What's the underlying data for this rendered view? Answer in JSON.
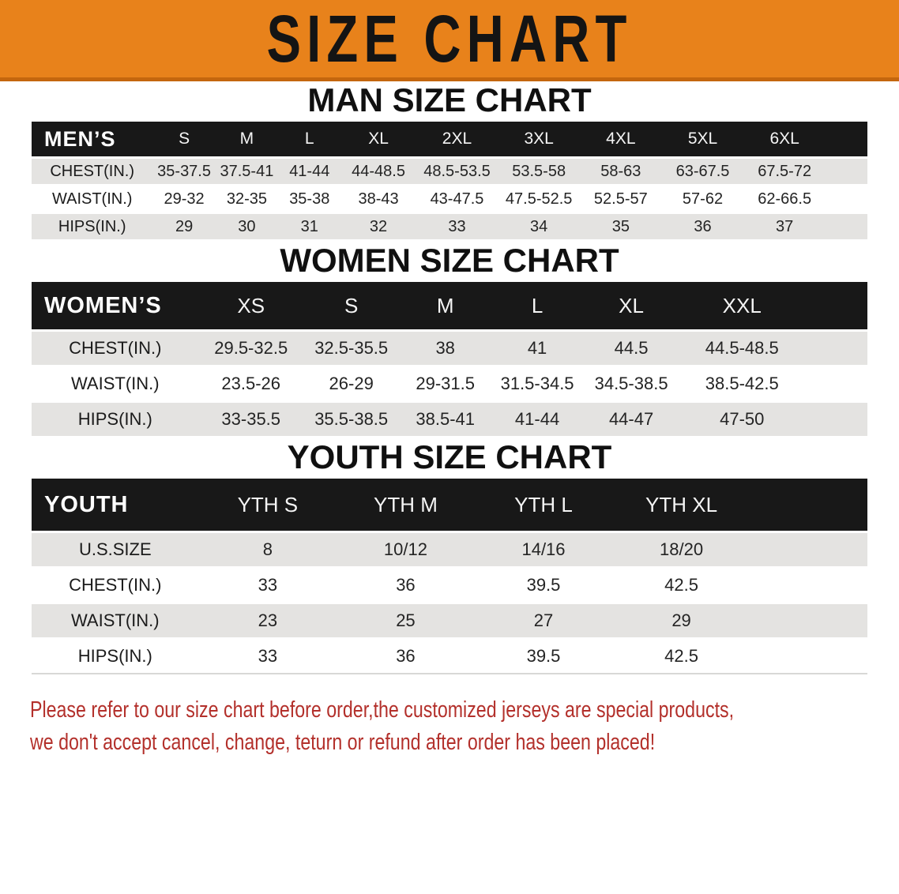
{
  "banner": {
    "title": "SIZE CHART"
  },
  "sections": [
    {
      "id": "men",
      "heading": "MAN SIZE CHART",
      "table": {
        "corner_label": "MEN’S",
        "columns": [
          "S",
          "M",
          "L",
          "XL",
          "2XL",
          "3XL",
          "4XL",
          "5XL",
          "6XL"
        ],
        "rows": [
          {
            "label": "CHEST(IN.)",
            "values": [
              "35-37.5",
              "37.5-41",
              "41-44",
              "44-48.5",
              "48.5-53.5",
              "53.5-58",
              "58-63",
              "63-67.5",
              "67.5-72"
            ]
          },
          {
            "label": "WAIST(IN.)",
            "values": [
              "29-32",
              "32-35",
              "35-38",
              "38-43",
              "43-47.5",
              "47.5-52.5",
              "52.5-57",
              "57-62",
              "62-66.5"
            ]
          },
          {
            "label": "HIPS(IN.)",
            "values": [
              "29",
              "30",
              "31",
              "32",
              "33",
              "34",
              "35",
              "36",
              "37"
            ]
          }
        ]
      }
    },
    {
      "id": "women",
      "heading": "WOMEN SIZE CHART",
      "table": {
        "corner_label": "WOMEN’S",
        "columns": [
          "XS",
          "S",
          "M",
          "L",
          "XL",
          "XXL"
        ],
        "rows": [
          {
            "label": "CHEST(IN.)",
            "values": [
              "29.5-32.5",
              "32.5-35.5",
              "38",
              "41",
              "44.5",
              "44.5-48.5"
            ]
          },
          {
            "label": "WAIST(IN.)",
            "values": [
              "23.5-26",
              "26-29",
              "29-31.5",
              "31.5-34.5",
              "34.5-38.5",
              "38.5-42.5"
            ]
          },
          {
            "label": "HIPS(IN.)",
            "values": [
              "33-35.5",
              "35.5-38.5",
              "38.5-41",
              "41-44",
              "44-47",
              "47-50"
            ]
          }
        ]
      }
    },
    {
      "id": "youth",
      "heading": "YOUTH SIZE CHART",
      "table": {
        "corner_label": "YOUTH",
        "columns": [
          "YTH S",
          "YTH M",
          "YTH L",
          "YTH XL"
        ],
        "rows": [
          {
            "label": "U.S.SIZE",
            "values": [
              "8",
              "10/12",
              "14/16",
              "18/20"
            ]
          },
          {
            "label": "CHEST(IN.)",
            "values": [
              "33",
              "36",
              "39.5",
              "42.5"
            ]
          },
          {
            "label": "WAIST(IN.)",
            "values": [
              "23",
              "25",
              "27",
              "29"
            ]
          },
          {
            "label": "HIPS(IN.)",
            "values": [
              "33",
              "36",
              "39.5",
              "42.5"
            ]
          }
        ]
      }
    }
  ],
  "disclaimer": {
    "line1": "Please refer to our size chart before order,the customized jerseys are special products,",
    "line2": "we don't accept cancel, change, teturn or refund after order has been placed!"
  },
  "colors": {
    "banner_bg": "#E8821B",
    "banner_border": "#C4660E",
    "table_header_bg": "#181818",
    "row_stripe": "#E4E3E1",
    "disclaimer_text": "#B3302B"
  }
}
